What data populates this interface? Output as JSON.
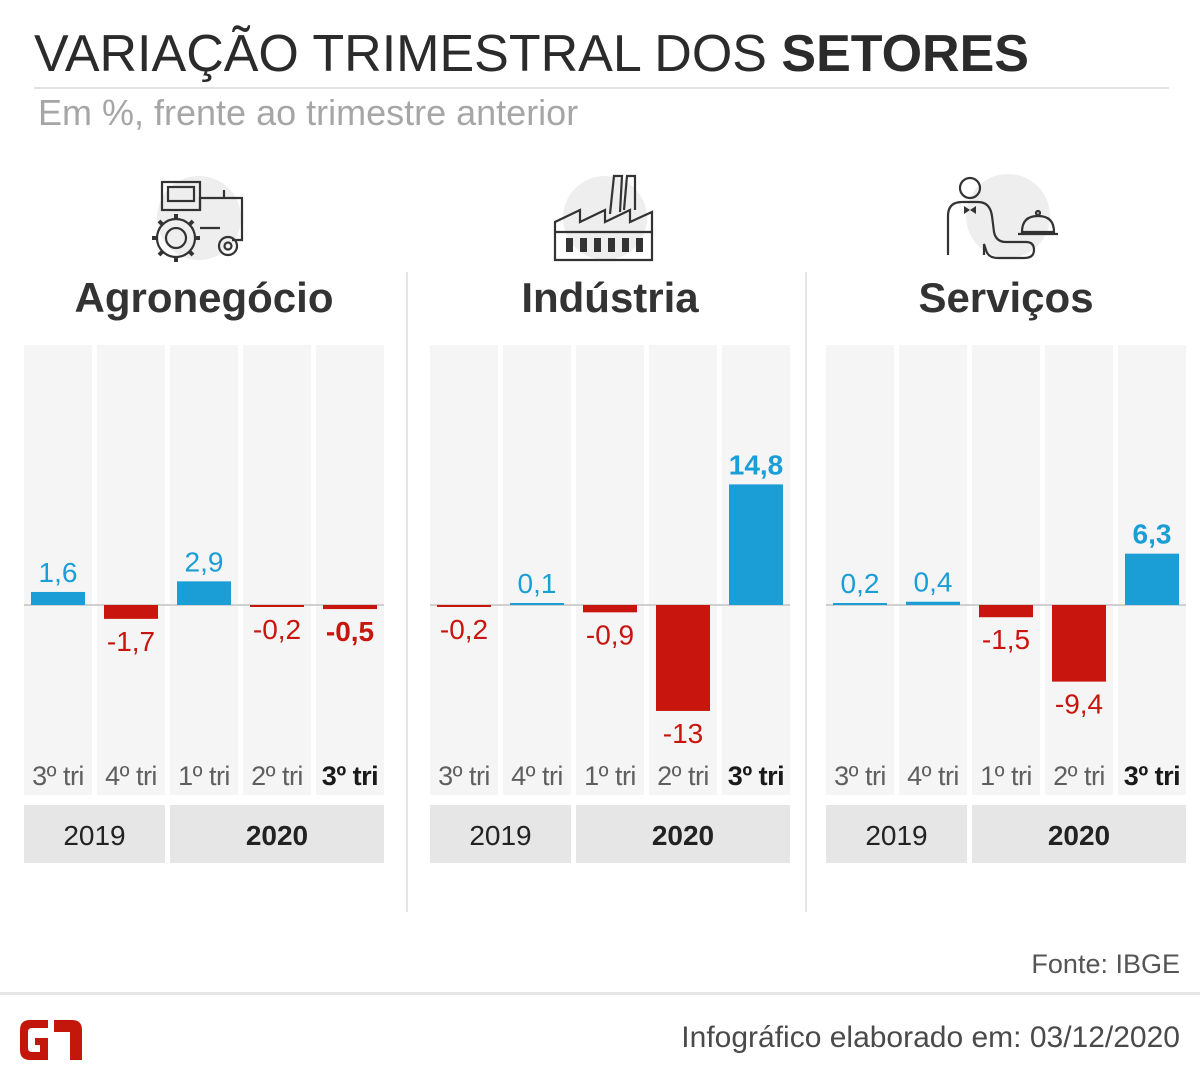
{
  "header": {
    "title_regular": "VARIAÇÃO TRIMESTRAL DOS",
    "title_bold": "SETORES",
    "subtitle": "Em %, frente ao trimestre anterior"
  },
  "colors": {
    "positive": "#1b9dd5",
    "negative": "#c8150e",
    "column_bg": "#f5f5f5",
    "year_bg": "#e6e6e6",
    "baseline": "#d0d0d0",
    "tick_regular": "#5f5f5f",
    "tick_bold": "#1a1a1a",
    "brand": "#c4170c"
  },
  "panels": [
    {
      "name": "Agronegócio",
      "icon": "tractor-icon"
    },
    {
      "name": "Indústria",
      "icon": "factory-icon"
    },
    {
      "name": "Serviços",
      "icon": "waiter-icon"
    }
  ],
  "chart_data": [
    {
      "type": "bar",
      "title": "Agronegócio",
      "categories": [
        "3º tri",
        "4º tri",
        "1º tri",
        "2º tri",
        "3º tri"
      ],
      "year_groups": [
        {
          "label": "2019",
          "count": 2,
          "bold": false
        },
        {
          "label": "2020",
          "count": 3,
          "bold": true
        }
      ],
      "values": [
        1.6,
        -1.7,
        2.9,
        -0.2,
        -0.5
      ],
      "value_labels": [
        "1,6",
        "-1,7",
        "2,9",
        "-0,2",
        "-0,5"
      ],
      "highlight_last": true,
      "ylim": [
        -15,
        15
      ]
    },
    {
      "type": "bar",
      "title": "Indústria",
      "categories": [
        "3º tri",
        "4º tri",
        "1º tri",
        "2º tri",
        "3º tri"
      ],
      "year_groups": [
        {
          "label": "2019",
          "count": 2,
          "bold": false
        },
        {
          "label": "2020",
          "count": 3,
          "bold": true
        }
      ],
      "values": [
        -0.2,
        0.1,
        -0.9,
        -13,
        14.8
      ],
      "value_labels": [
        "-0,2",
        "0,1",
        "-0,9",
        "-13",
        "14,8"
      ],
      "highlight_last": true,
      "ylim": [
        -15,
        15
      ]
    },
    {
      "type": "bar",
      "title": "Serviços",
      "categories": [
        "3º tri",
        "4º tri",
        "1º tri",
        "2º tri",
        "3º tri"
      ],
      "year_groups": [
        {
          "label": "2019",
          "count": 2,
          "bold": false
        },
        {
          "label": "2020",
          "count": 3,
          "bold": true
        }
      ],
      "values": [
        0.2,
        0.4,
        -1.5,
        -9.4,
        6.3
      ],
      "value_labels": [
        "0,2",
        "0,4",
        "-1,5",
        "-9,4",
        "6,3"
      ],
      "highlight_last": true,
      "ylim": [
        -15,
        15
      ]
    }
  ],
  "footer": {
    "source": "Fonte: IBGE",
    "credit": "Infográfico elaborado em: 03/12/2020",
    "logo_text": "G1"
  }
}
